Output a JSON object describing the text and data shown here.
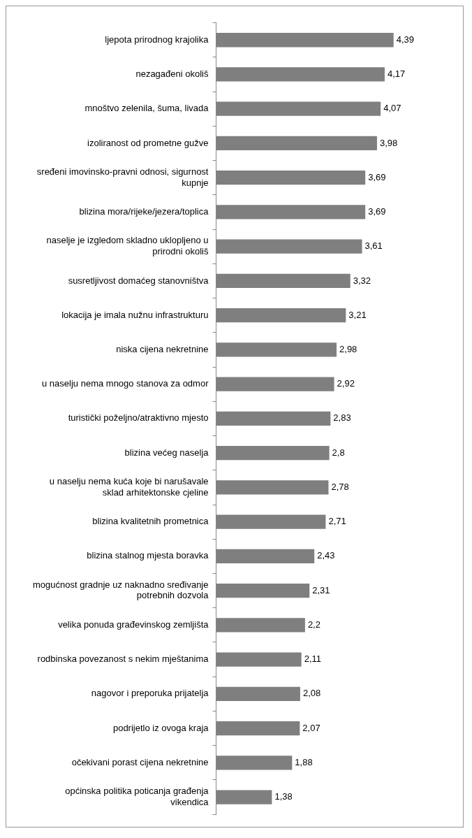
{
  "chart_data": {
    "type": "bar",
    "orientation": "horizontal",
    "categories": [
      "ljepota prirodnog krajolika",
      "nezagađeni okoliš",
      "mnoštvo zelenila, šuma, livada",
      "izoliranost od prometne gužve",
      "sređeni imovinsko-pravni odnosi, sigurnost kupnje",
      "blizina mora/rijeke/jezera/toplica",
      "naselje je izgledom skladno uklopljeno u prirodni okoliš",
      "susretljivost domaćeg stanovništva",
      "lokacija je imala nužnu infrastrukturu",
      "niska cijena nekretnine",
      "u naselju nema mnogo stanova za odmor",
      "turistički poželjno/atraktivno mjesto",
      "blizina većeg naselja",
      "u naselju nema kuća koje bi narušavale sklad arhitektonske cjeline",
      "blizina kvalitetnih prometnica",
      "blizina stalnog mjesta boravka",
      "mogućnost gradnje uz naknadno sređivanje potrebnih dozvola",
      "velika ponuda građevinskog zemljišta",
      "rodbinska povezanost s nekim mještanima",
      "nagovor i preporuka prijatelja",
      "podrijetlo iz ovoga kraja",
      "očekivani porast cijena nekretnine",
      "općinska politika poticanja građenja vikendica"
    ],
    "values": [
      4.39,
      4.17,
      4.07,
      3.98,
      3.69,
      3.69,
      3.61,
      3.32,
      3.21,
      2.98,
      2.92,
      2.83,
      2.8,
      2.78,
      2.71,
      2.43,
      2.31,
      2.2,
      2.11,
      2.08,
      2.07,
      1.88,
      1.38
    ],
    "value_labels": [
      "4,39",
      "4,17",
      "4,07",
      "3,98",
      "3,69",
      "3,69",
      "3,61",
      "3,32",
      "3,21",
      "2,98",
      "2,92",
      "2,83",
      "2,8",
      "2,78",
      "2,71",
      "2,43",
      "2,31",
      "2,2",
      "2,11",
      "2,08",
      "2,07",
      "1,88",
      "1,38"
    ],
    "color": "#7f7f7f",
    "grid": false,
    "legend": false,
    "tick_labels": "y"
  }
}
